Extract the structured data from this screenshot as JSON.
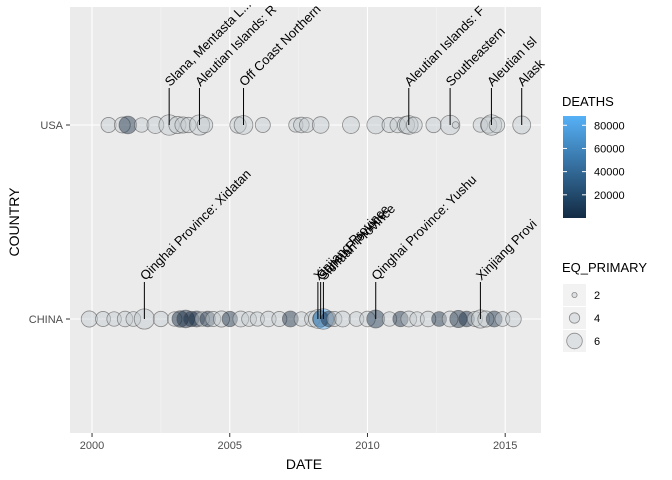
{
  "chart_data": {
    "type": "scatter",
    "title": "",
    "xlabel": "DATE",
    "ylabel": "COUNTRY",
    "xlim": [
      1999.2,
      2016.3
    ],
    "x_ticks": [
      2000,
      2005,
      2010,
      2015
    ],
    "x_tick_labels": [
      "2000",
      "2005",
      "2010",
      "2015"
    ],
    "categories": [
      "CHINA",
      "USA"
    ],
    "grid": true,
    "legend_position": "right",
    "colors": {
      "panel": "#ebebeb",
      "grid_major": "#ffffff",
      "grid_minor": "#f5f5f5",
      "point_fill": "#c4c9cf",
      "point_stroke": "#4d4d4d",
      "death_low": "#132b43",
      "death_high": "#56b1f7"
    },
    "legends": {
      "deaths": {
        "title": "DEATHS",
        "ticks": [
          20000,
          40000,
          60000,
          80000
        ],
        "tick_labels": [
          "20000",
          "40000",
          "60000",
          "80000"
        ],
        "range": [
          0,
          88000
        ]
      },
      "eq_primary": {
        "title": "EQ_PRIMARY",
        "ticks": [
          2,
          4,
          6
        ],
        "tick_labels": [
          "2",
          "4",
          "6"
        ]
      }
    },
    "series": [
      {
        "country": "USA",
        "points": [
          {
            "x": 2000.6,
            "mag": 5.8,
            "deaths": 0
          },
          {
            "x": 2001.1,
            "mag": 6.1,
            "deaths": 0
          },
          {
            "x": 2001.3,
            "mag": 6.8,
            "deaths": 1
          },
          {
            "x": 2001.8,
            "mag": 5.6,
            "deaths": 0
          },
          {
            "x": 2002.3,
            "mag": 6.5,
            "deaths": 0
          },
          {
            "x": 2002.8,
            "mag": 7.9,
            "deaths": 0
          },
          {
            "x": 2003.1,
            "mag": 6.6,
            "deaths": 0
          },
          {
            "x": 2003.3,
            "mag": 6.2,
            "deaths": 0
          },
          {
            "x": 2003.5,
            "mag": 5.9,
            "deaths": 0
          },
          {
            "x": 2003.9,
            "mag": 7.8,
            "deaths": 0
          },
          {
            "x": 2004.1,
            "mag": 6.0,
            "deaths": 0
          },
          {
            "x": 2005.3,
            "mag": 6.3,
            "deaths": 0
          },
          {
            "x": 2005.5,
            "mag": 7.2,
            "deaths": 0
          },
          {
            "x": 2006.2,
            "mag": 5.8,
            "deaths": 0
          },
          {
            "x": 2007.4,
            "mag": 5.5,
            "deaths": 0
          },
          {
            "x": 2007.6,
            "mag": 6.0,
            "deaths": 0
          },
          {
            "x": 2007.8,
            "mag": 5.7,
            "deaths": 0
          },
          {
            "x": 2008.3,
            "mag": 6.4,
            "deaths": 0
          },
          {
            "x": 2009.4,
            "mag": 6.5,
            "deaths": 0
          },
          {
            "x": 2010.3,
            "mag": 6.8,
            "deaths": 0
          },
          {
            "x": 2010.8,
            "mag": 5.8,
            "deaths": 0
          },
          {
            "x": 2011.1,
            "mag": 6.0,
            "deaths": 0
          },
          {
            "x": 2011.4,
            "mag": 6.6,
            "deaths": 0
          },
          {
            "x": 2011.5,
            "mag": 7.2,
            "deaths": 0
          },
          {
            "x": 2011.7,
            "mag": 6.1,
            "deaths": 0
          },
          {
            "x": 2012.4,
            "mag": 5.9,
            "deaths": 0
          },
          {
            "x": 2013.0,
            "mag": 7.5,
            "deaths": 0
          },
          {
            "x": 2013.2,
            "mag": 2.6,
            "deaths": 0
          },
          {
            "x": 2014.1,
            "mag": 5.6,
            "deaths": 0
          },
          {
            "x": 2014.4,
            "mag": 6.3,
            "deaths": 0
          },
          {
            "x": 2014.5,
            "mag": 7.9,
            "deaths": 0
          },
          {
            "x": 2014.7,
            "mag": 6.0,
            "deaths": 0
          },
          {
            "x": 2015.6,
            "mag": 6.9,
            "deaths": 0
          }
        ],
        "annotations": [
          {
            "x": 2002.8,
            "text": "Slana, Mentasta L..."
          },
          {
            "x": 2003.9,
            "text": "Aleutian Islands:  R"
          },
          {
            "x": 2005.5,
            "text": "Off Coast Northern"
          },
          {
            "x": 2011.5,
            "text": "Aleutian Islands:  F"
          },
          {
            "x": 2013.0,
            "text": "Southeastern"
          },
          {
            "x": 2014.5,
            "text": "Aleutian Isl"
          },
          {
            "x": 2015.6,
            "text": "Alask"
          }
        ]
      },
      {
        "country": "CHINA",
        "points": [
          {
            "x": 1999.9,
            "mag": 6.2,
            "deaths": 0
          },
          {
            "x": 2000.4,
            "mag": 5.8,
            "deaths": 0
          },
          {
            "x": 2000.8,
            "mag": 5.6,
            "deaths": 0
          },
          {
            "x": 2001.2,
            "mag": 6.0,
            "deaths": 0
          },
          {
            "x": 2001.5,
            "mag": 5.7,
            "deaths": 0
          },
          {
            "x": 2001.9,
            "mag": 7.8,
            "deaths": 0
          },
          {
            "x": 2002.5,
            "mag": 5.9,
            "deaths": 0
          },
          {
            "x": 2003.0,
            "mag": 5.6,
            "deaths": 0
          },
          {
            "x": 2003.2,
            "mag": 6.3,
            "deaths": 200
          },
          {
            "x": 2003.4,
            "mag": 6.8,
            "deaths": 4
          },
          {
            "x": 2003.6,
            "mag": 5.9,
            "deaths": 300
          },
          {
            "x": 2003.8,
            "mag": 6.1,
            "deaths": 100
          },
          {
            "x": 2004.0,
            "mag": 5.6,
            "deaths": 0
          },
          {
            "x": 2004.2,
            "mag": 6.0,
            "deaths": 200
          },
          {
            "x": 2004.4,
            "mag": 5.8,
            "deaths": 0
          },
          {
            "x": 2004.7,
            "mag": 6.2,
            "deaths": 0
          },
          {
            "x": 2005.0,
            "mag": 5.9,
            "deaths": 13
          },
          {
            "x": 2005.4,
            "mag": 6.1,
            "deaths": 0
          },
          {
            "x": 2005.7,
            "mag": 5.7,
            "deaths": 0
          },
          {
            "x": 2006.0,
            "mag": 5.5,
            "deaths": 0
          },
          {
            "x": 2006.4,
            "mag": 6.0,
            "deaths": 0
          },
          {
            "x": 2006.8,
            "mag": 5.8,
            "deaths": 0
          },
          {
            "x": 2007.2,
            "mag": 6.1,
            "deaths": 3
          },
          {
            "x": 2007.6,
            "mag": 5.6,
            "deaths": 0
          },
          {
            "x": 2008.0,
            "mag": 6.0,
            "deaths": 0
          },
          {
            "x": 2008.2,
            "mag": 7.2,
            "deaths": 0
          },
          {
            "x": 2008.3,
            "mag": 6.2,
            "deaths": 200
          },
          {
            "x": 2008.4,
            "mag": 7.9,
            "deaths": 87587
          },
          {
            "x": 2008.6,
            "mag": 6.0,
            "deaths": 40
          },
          {
            "x": 2008.8,
            "mag": 5.8,
            "deaths": 0
          },
          {
            "x": 2009.1,
            "mag": 6.1,
            "deaths": 0
          },
          {
            "x": 2009.6,
            "mag": 5.7,
            "deaths": 0
          },
          {
            "x": 2010.0,
            "mag": 6.0,
            "deaths": 0
          },
          {
            "x": 2010.3,
            "mag": 6.9,
            "deaths": 2698
          },
          {
            "x": 2010.8,
            "mag": 5.6,
            "deaths": 0
          },
          {
            "x": 2011.2,
            "mag": 5.9,
            "deaths": 25
          },
          {
            "x": 2011.5,
            "mag": 6.1,
            "deaths": 0
          },
          {
            "x": 2011.8,
            "mag": 5.6,
            "deaths": 0
          },
          {
            "x": 2012.2,
            "mag": 6.0,
            "deaths": 0
          },
          {
            "x": 2012.6,
            "mag": 5.7,
            "deaths": 81
          },
          {
            "x": 2013.0,
            "mag": 6.1,
            "deaths": 0
          },
          {
            "x": 2013.3,
            "mag": 6.6,
            "deaths": 196
          },
          {
            "x": 2013.6,
            "mag": 6.0,
            "deaths": 95
          },
          {
            "x": 2013.9,
            "mag": 5.8,
            "deaths": 0
          },
          {
            "x": 2014.1,
            "mag": 7.0,
            "deaths": 0
          },
          {
            "x": 2014.3,
            "mag": 6.2,
            "deaths": 0
          },
          {
            "x": 2014.6,
            "mag": 6.1,
            "deaths": 617
          },
          {
            "x": 2014.9,
            "mag": 5.7,
            "deaths": 0
          },
          {
            "x": 2015.3,
            "mag": 6.0,
            "deaths": 0
          }
        ],
        "annotations": [
          {
            "x": 2001.9,
            "text": "Qinghai Province:  Xidatan"
          },
          {
            "x": 2008.2,
            "text": "Xinjiang Province"
          },
          {
            "x": 2008.3,
            "text": "Gansu Province"
          },
          {
            "x": 2008.4,
            "text": "Sichuan Province"
          },
          {
            "x": 2010.3,
            "text": "Qinghai Province:  Yushu"
          },
          {
            "x": 2014.1,
            "text": "Xinjiang Provi"
          }
        ]
      }
    ]
  }
}
